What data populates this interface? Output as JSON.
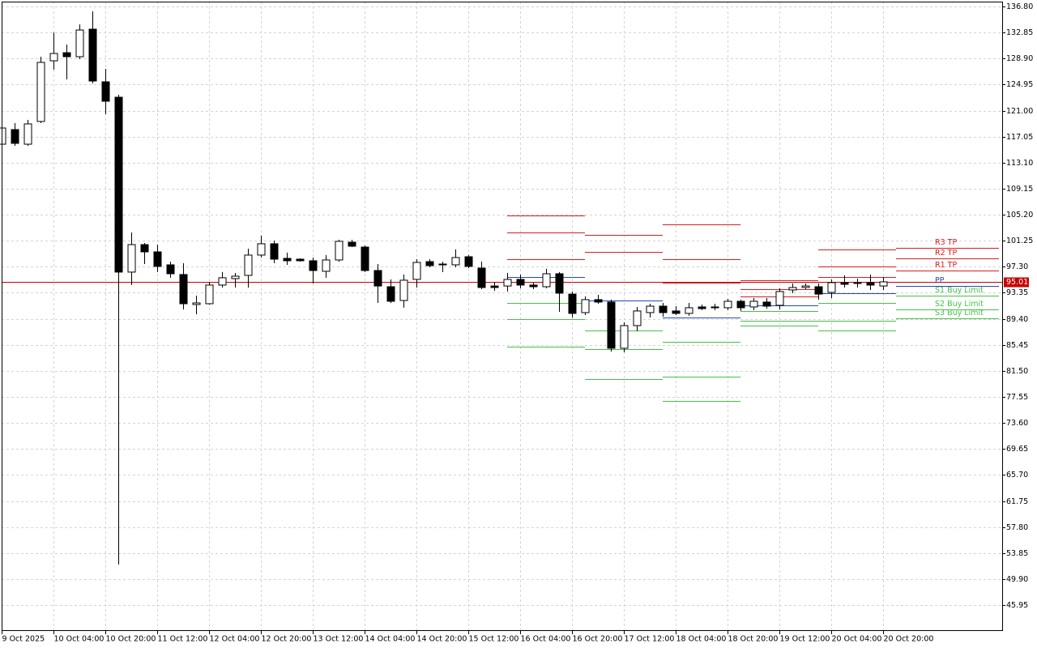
{
  "chart_data": {
    "type": "candlestick",
    "categories": [
      "9 Oct 2025",
      null,
      null,
      null,
      "10 Oct 04:00",
      null,
      null,
      null,
      "10 Oct 20:00",
      null,
      null,
      null,
      "11 Oct 12:00",
      null,
      null,
      null,
      "12 Oct 04:00",
      null,
      null,
      null,
      "12 Oct 20:00",
      null,
      null,
      null,
      "13 Oct 12:00",
      null,
      null,
      null,
      "14 Oct 04:00",
      null,
      null,
      null,
      "14 Oct 20:00",
      null,
      null,
      null,
      "15 Oct 12:00",
      null,
      null,
      null,
      "16 Oct 04:00",
      null,
      null,
      null,
      "16 Oct 20:00",
      null,
      null,
      null,
      "17 Oct 12:00",
      null,
      null,
      null,
      "18 Oct 04:00",
      null,
      null,
      null,
      "18 Oct 20:00",
      null,
      null,
      null,
      "19 Oct 12:00",
      null,
      null,
      null,
      "20 Oct 04:00",
      null,
      null,
      null,
      "20 Oct 20:00"
    ],
    "open": [
      115.9,
      118.12,
      115.9,
      119.35,
      128.56,
      129.79,
      129.18,
      133.36,
      125.37,
      123.03,
      96.49,
      100.66,
      99.56,
      97.59,
      96.12,
      91.57,
      91.69,
      94.52,
      95.5,
      95.99,
      99.07,
      100.79,
      98.57,
      98.45,
      98.21,
      96.61,
      98.33,
      101.03,
      100.29,
      96.73,
      94.27,
      92.18,
      95.38,
      98.08,
      97.71,
      97.59,
      98.82,
      97.1,
      94.38,
      94.38,
      95.38,
      94.52,
      94.27,
      96.24,
      93.15,
      90.34,
      92.31,
      91.94,
      84.93,
      88.37,
      90.34,
      91.32,
      90.59,
      90.22,
      91.2,
      91.08,
      91.08,
      92.06,
      91.2,
      91.94,
      91.45,
      93.78,
      94.15,
      94.27,
      93.41,
      94.89,
      94.77,
      94.89,
      94.38
    ],
    "high": [
      118.73,
      119.1,
      119.59,
      129.18,
      132.86,
      131.02,
      134.09,
      136.06,
      127.33,
      123.4,
      102.51,
      100.91,
      100.66,
      98.08,
      97.84,
      92.92,
      95.01,
      96.49,
      96.36,
      100.05,
      102.02,
      101.28,
      99.44,
      98.57,
      98.7,
      99.07,
      101.4,
      101.4,
      100.54,
      97.71,
      95.38,
      96.12,
      98.45,
      98.45,
      98.08,
      99.93,
      99.07,
      98.08,
      95.01,
      96.36,
      96.12,
      94.89,
      96.98,
      96.49,
      93.54,
      92.8,
      93.04,
      92.31,
      88.87,
      91.2,
      91.69,
      91.81,
      91.32,
      91.81,
      91.57,
      91.69,
      92.43,
      92.31,
      92.55,
      92.55,
      94.03,
      94.77,
      94.77,
      94.77,
      95.38,
      95.99,
      95.5,
      96.12,
      95.75
    ],
    "low": [
      115.66,
      115.66,
      115.66,
      119.1,
      127.21,
      125.74,
      128.81,
      125.12,
      120.45,
      52.12,
      94.52,
      97.71,
      96.49,
      95.63,
      90.83,
      90.09,
      91.57,
      94.15,
      94.15,
      94.15,
      98.7,
      97.84,
      97.59,
      98.08,
      94.77,
      95.63,
      98.08,
      100.29,
      96.49,
      91.81,
      91.81,
      91.08,
      94.15,
      97.22,
      96.49,
      97.22,
      97.1,
      93.9,
      93.66,
      93.54,
      94.03,
      93.9,
      94.03,
      90.46,
      89.6,
      89.97,
      91.69,
      84.44,
      84.32,
      87.52,
      89.6,
      89.72,
      89.97,
      89.85,
      90.71,
      90.71,
      90.71,
      90.59,
      90.71,
      90.95,
      90.83,
      93.29,
      93.9,
      92.31,
      92.55,
      94.15,
      94.15,
      93.78,
      93.78
    ],
    "close": [
      118.36,
      116.03,
      118.98,
      128.32,
      129.67,
      129.18,
      133.23,
      125.49,
      122.42,
      96.49,
      100.66,
      99.56,
      97.35,
      96.24,
      91.69,
      91.81,
      94.52,
      95.63,
      95.87,
      99.07,
      100.79,
      98.45,
      98.21,
      98.21,
      96.73,
      98.33,
      101.16,
      100.42,
      96.73,
      94.38,
      92.06,
      95.26,
      97.96,
      97.47,
      97.59,
      98.7,
      97.35,
      94.15,
      94.15,
      95.38,
      94.52,
      94.27,
      96.24,
      93.29,
      90.22,
      92.31,
      91.94,
      84.93,
      88.37,
      90.59,
      91.32,
      90.34,
      90.22,
      91.08,
      90.95,
      91.2,
      92.06,
      91.08,
      92.06,
      91.32,
      93.54,
      94.15,
      94.38,
      93.15,
      94.89,
      94.64,
      94.89,
      94.52,
      95.01
    ],
    "bull_color": "#ffffff",
    "bear_color": "#000000",
    "levels": [
      {
        "name": "R3 TP",
        "color": "#d81e1e",
        "values": [
          105.09,
          102.14,
          103.74,
          95.26,
          99.93,
          100.17
        ]
      },
      {
        "name": "R2 TP",
        "color": "#d81e1e",
        "values": [
          102.51,
          99.56,
          98.45,
          93.9,
          97.35,
          98.57
        ]
      },
      {
        "name": "R1 TP",
        "color": "#d81e1e",
        "values": [
          98.45,
          95.01,
          94.89,
          92.8,
          95.75,
          96.73
        ]
      },
      {
        "name": "PP",
        "color": "#2448b8",
        "values": [
          95.75,
          92.18,
          89.6,
          91.45,
          93.29,
          94.38
        ]
      },
      {
        "name": "S1 Buy Limit",
        "color": "#47c047",
        "values": [
          91.81,
          87.64,
          85.92,
          90.59,
          91.81,
          92.92
        ]
      },
      {
        "name": "S2 Buy Limit",
        "color": "#47c047",
        "values": [
          89.36,
          84.81,
          80.63,
          89.11,
          89.11,
          90.83
        ]
      },
      {
        "name": "S3 Buy Limit",
        "color": "#47c047",
        "values": [
          85.18,
          80.26,
          76.94,
          88.37,
          87.64,
          89.48
        ]
      }
    ],
    "current_price": 95.01,
    "current_price_color": "#c80000",
    "ylim": [
      42.02,
      137.54
    ],
    "yticks": [
      {
        "value": 136.8,
        "label": "136.80"
      },
      132.85,
      {
        "value": 128.9,
        "label": "128.90"
      },
      124.95,
      {
        "value": 121,
        "label": "121.00"
      },
      117.05,
      {
        "value": 113.1,
        "label": "113.10"
      },
      109.15,
      {
        "value": 105.2,
        "label": "105.20"
      },
      101.25,
      {
        "value": 97.3,
        "label": "97.30"
      },
      93.35,
      {
        "value": 89.4,
        "label": "89.40"
      },
      85.45,
      {
        "value": 81.5,
        "label": "81.50"
      },
      77.55,
      {
        "value": 73.6,
        "label": "73.60"
      },
      69.65,
      {
        "value": 65.7,
        "label": "65.70"
      },
      61.75,
      {
        "value": 57.8,
        "label": "57.80"
      },
      53.85,
      {
        "value": 49.9,
        "label": "49.90"
      },
      45.95
    ],
    "grid": true
  }
}
